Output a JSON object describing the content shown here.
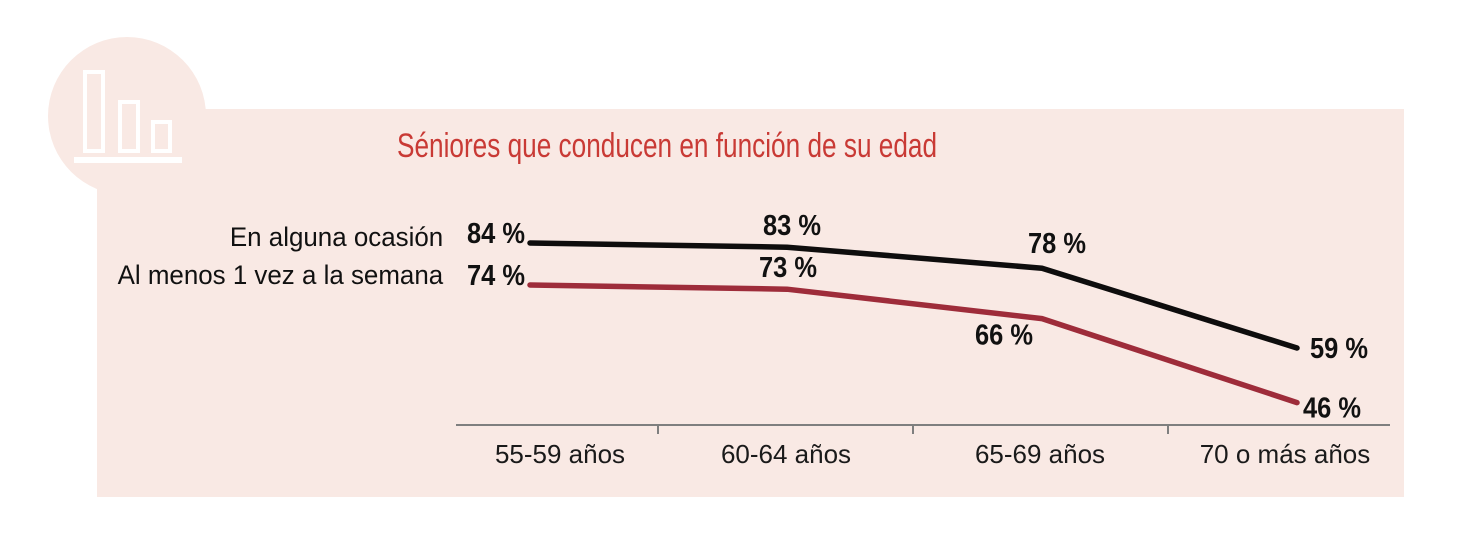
{
  "title": {
    "text": "Séniores que conducen en función de su edad",
    "color": "#c93a35"
  },
  "panel": {
    "background": "#f9e9e4"
  },
  "icon": {
    "name": "bar-chart-icon",
    "color": "#ffffff"
  },
  "chart_data": {
    "type": "line",
    "title": "Séniores que conducen en función de su edad",
    "categories": [
      "55-59 años",
      "60-64 años",
      "65-69 años",
      "70 o más años"
    ],
    "series": [
      {
        "name": "En alguna ocasión",
        "values": [
          84,
          83,
          78,
          59
        ],
        "color": "#0e0d0d"
      },
      {
        "name": "Al menos 1 vez a la semana",
        "values": [
          74,
          73,
          66,
          46
        ],
        "color": "#9e2c3a"
      }
    ],
    "value_suffix": " %",
    "axis_color": "#7f7f7f",
    "label_color": "#141414",
    "grid": false,
    "legend_position": "left",
    "ylim": [
      40,
      90
    ]
  }
}
